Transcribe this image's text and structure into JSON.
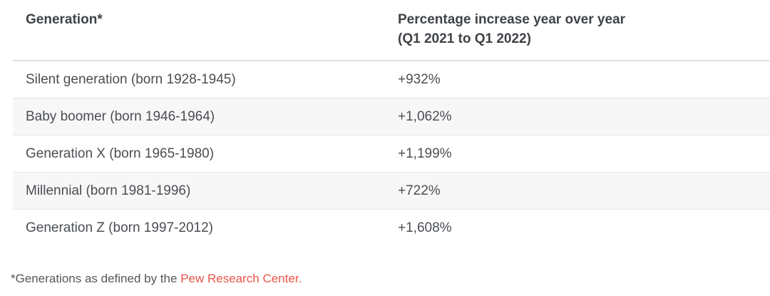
{
  "table": {
    "columns": [
      {
        "label": "Generation*"
      },
      {
        "label_line1": "Percentage increase year over year",
        "label_line2": "(Q1 2021 to Q1 2022)"
      }
    ],
    "rows": [
      {
        "generation": "Silent generation (born 1928-1945)",
        "increase": "+932%"
      },
      {
        "generation": "Baby boomer (born 1946-1964)",
        "increase": "+1,062%"
      },
      {
        "generation": "Generation X (born 1965-1980)",
        "increase": "+1,199%"
      },
      {
        "generation": "Millennial (born 1981-1996)",
        "increase": "+722%"
      },
      {
        "generation": "Generation Z (born 1997-2012)",
        "increase": "+1,608%"
      }
    ]
  },
  "footnote": {
    "prefix": "*Generations as defined by the ",
    "link_text": "Pew Research Center",
    "suffix": "."
  },
  "colors": {
    "header_text": "#3e4247",
    "body_text": "#4a4e53",
    "stripe_background": "#f7f7f7",
    "row_border": "#e5e5e5",
    "header_border": "#e0e0e0",
    "link_red": "#ec5549",
    "footnote_text": "#54575c"
  },
  "chart_data": {
    "type": "table",
    "title": "",
    "columns": [
      "Generation*",
      "Percentage increase year over year (Q1 2021 to Q1 2022)"
    ],
    "rows": [
      [
        "Silent generation (born 1928-1945)",
        "+932%"
      ],
      [
        "Baby boomer (born 1946-1964)",
        "+1,062%"
      ],
      [
        "Generation X (born 1965-1980)",
        "+1,199%"
      ],
      [
        "Millennial (born 1981-1996)",
        "+722%"
      ],
      [
        "Generation Z (born 1997-2012)",
        "+1,608%"
      ]
    ],
    "values_numeric_percent": [
      932,
      1062,
      1199,
      722,
      1608
    ],
    "footnote": "*Generations as defined by the Pew Research Center.",
    "layout_hints": {
      "striped_rows": true,
      "stripe_on": "even rows (2nd and 4th)",
      "grid": "horizontal dividers only"
    }
  }
}
